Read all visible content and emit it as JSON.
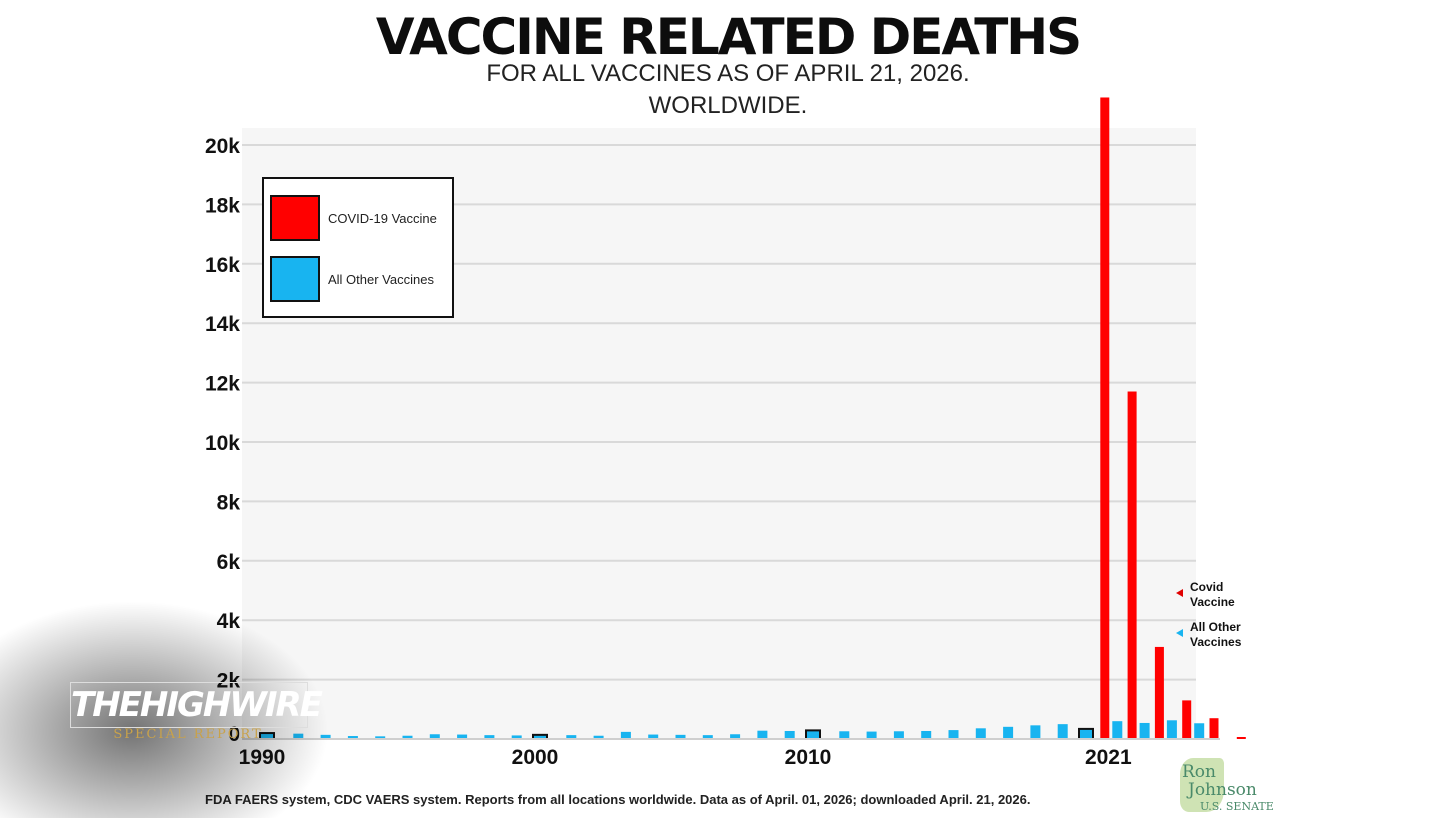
{
  "chart_data": {
    "type": "bar",
    "title": "VACCINE RELATED DEATHS",
    "subtitle": "FOR ALL VACCINES AS OF APRIL 21, 2026.",
    "subtitle2": "WORLDWIDE.",
    "ylim": [
      0,
      21000
    ],
    "ytick_values": [
      2000,
      4000,
      6000,
      8000,
      10000,
      12000,
      14000,
      16000,
      18000,
      20000
    ],
    "ytick_labels": [
      "2k",
      "4k",
      "6k",
      "8k",
      "10k",
      "12k",
      "14k",
      "16k",
      "18k",
      "20k"
    ],
    "ytick_bottom_label": "0",
    "xtick_labels": [
      {
        "label": "1990",
        "year": 1990
      },
      {
        "label": "2000",
        "year": 2000
      },
      {
        "label": "2010",
        "year": 2010
      },
      {
        "label": "2021",
        "year": 2021
      }
    ],
    "grid": true,
    "legend_position": "top-left",
    "x": [
      1990,
      1991,
      1992,
      1993,
      1994,
      1995,
      1996,
      1997,
      1998,
      1999,
      2000,
      2001,
      2002,
      2003,
      2004,
      2005,
      2006,
      2007,
      2008,
      2009,
      2010,
      2011,
      2012,
      2013,
      2014,
      2015,
      2016,
      2017,
      2018,
      2019,
      2020,
      2021,
      2022,
      2023,
      2024,
      2025,
      2026
    ],
    "series": [
      {
        "name": "COVID-19 Vaccine",
        "color": "#ff0000",
        "values": [
          0,
          0,
          0,
          0,
          0,
          0,
          0,
          0,
          0,
          0,
          0,
          0,
          0,
          0,
          0,
          0,
          0,
          0,
          0,
          0,
          0,
          0,
          0,
          0,
          0,
          0,
          0,
          0,
          0,
          0,
          0,
          21600,
          11700,
          3100,
          1300,
          700,
          60
        ]
      },
      {
        "name": "All Other Vaccines",
        "color": "#18b4f0",
        "values": [
          200,
          180,
          140,
          100,
          90,
          110,
          160,
          150,
          130,
          120,
          140,
          130,
          110,
          240,
          150,
          140,
          130,
          160,
          280,
          270,
          290,
          260,
          250,
          260,
          270,
          300,
          360,
          410,
          460,
          500,
          340,
          600,
          540,
          630,
          530,
          0,
          0
        ]
      }
    ],
    "outlined_bars": [
      1990,
      2000,
      2010,
      2020
    ],
    "side_legend": [
      {
        "label_line1": "Covid",
        "label_line2": "Vaccine",
        "color": "#e00000"
      },
      {
        "label_line1": "All Other",
        "label_line2": "Vaccines",
        "color": "#18b4f0"
      }
    ],
    "source": "FDA FAERS system, CDC VAERS system. Reports from all locations worldwide. Data as of April. 01, 2026; downloaded April. 21, 2026."
  },
  "overlay": {
    "logo_main": "THEHIGHWIRE",
    "logo_sub": "SPECIAL REPORT",
    "senate_name1": "Ron",
    "senate_name2": "Johnson",
    "senate_sub": "U.S. SENATE"
  }
}
